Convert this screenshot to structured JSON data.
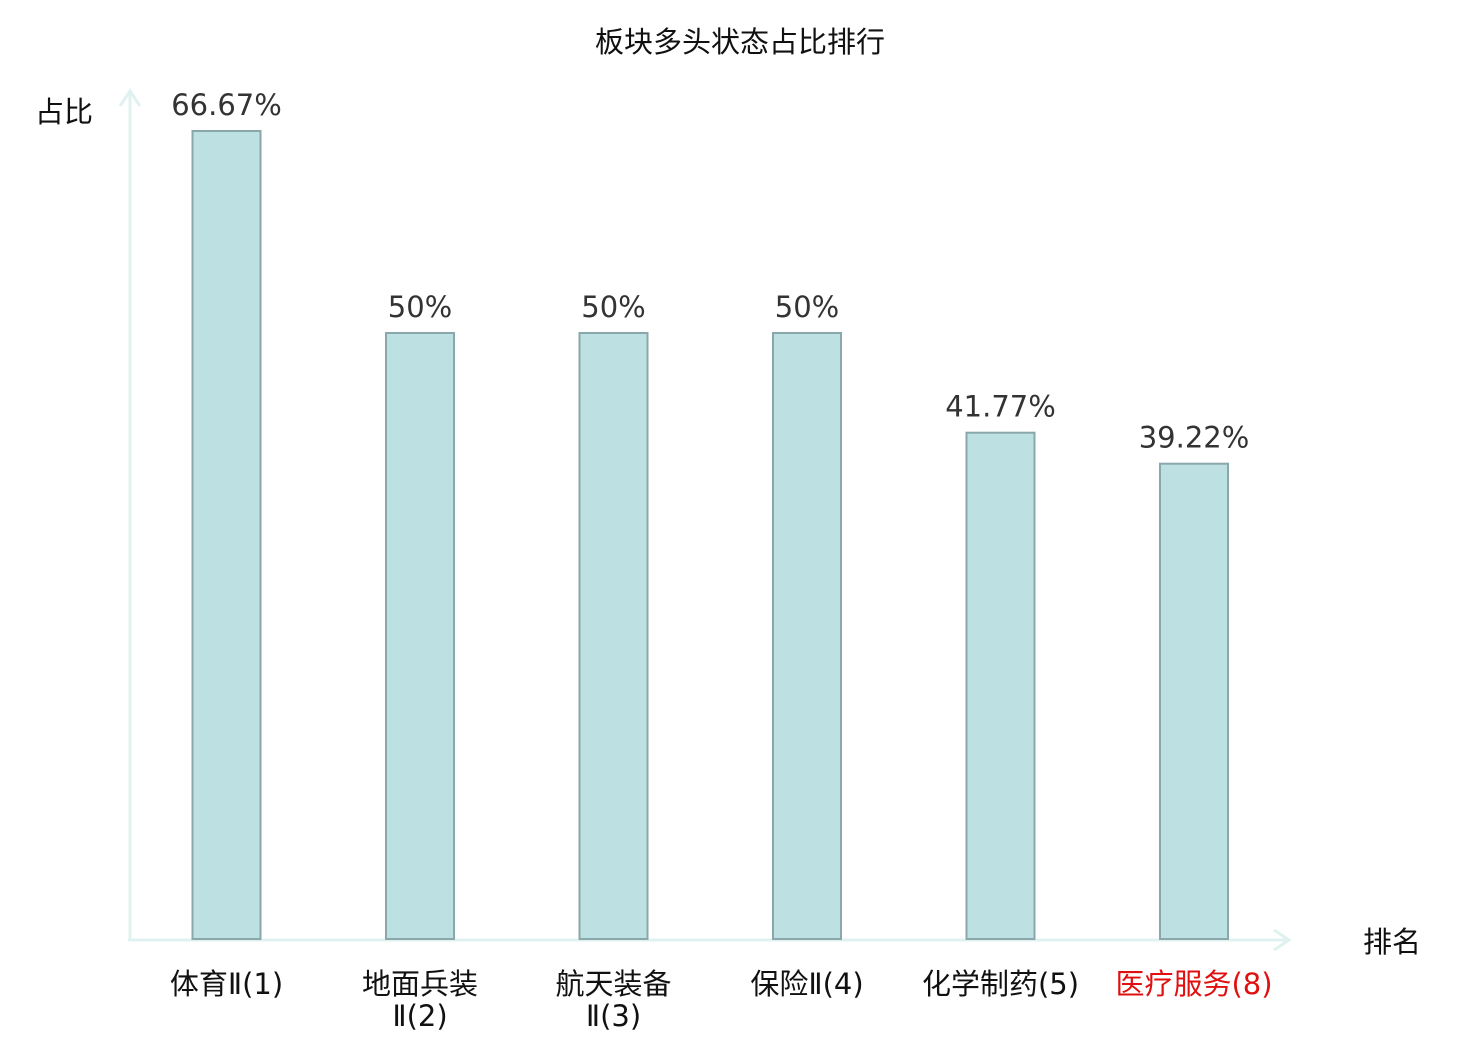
{
  "chart_data": {
    "type": "bar",
    "title": "板块多头状态占比排行",
    "ylabel": "占比",
    "xlabel": "排名",
    "ylim": [
      0,
      70
    ],
    "grid": false,
    "categories": [
      {
        "lines": [
          "体育Ⅱ(1)"
        ],
        "highlight": false
      },
      {
        "lines": [
          "地面兵装",
          "Ⅱ(2)"
        ],
        "highlight": false
      },
      {
        "lines": [
          "航天装备",
          "Ⅱ(3)"
        ],
        "highlight": false
      },
      {
        "lines": [
          "保险Ⅱ(4)"
        ],
        "highlight": false
      },
      {
        "lines": [
          "化学制药(5)"
        ],
        "highlight": false
      },
      {
        "lines": [
          "医疗服务(8)"
        ],
        "highlight": true
      }
    ],
    "values": [
      66.67,
      50,
      50,
      50,
      41.77,
      39.22
    ],
    "value_labels": [
      "66.67%",
      "50%",
      "50%",
      "50%",
      "41.77%",
      "39.22%"
    ]
  },
  "colors": {
    "bar_fill": "#bde0e3",
    "bar_stroke": "#8aa8ab",
    "axis": "#e0f2f0",
    "text": "#333333",
    "title_text": "#111111",
    "highlight_text": "#e01010"
  }
}
